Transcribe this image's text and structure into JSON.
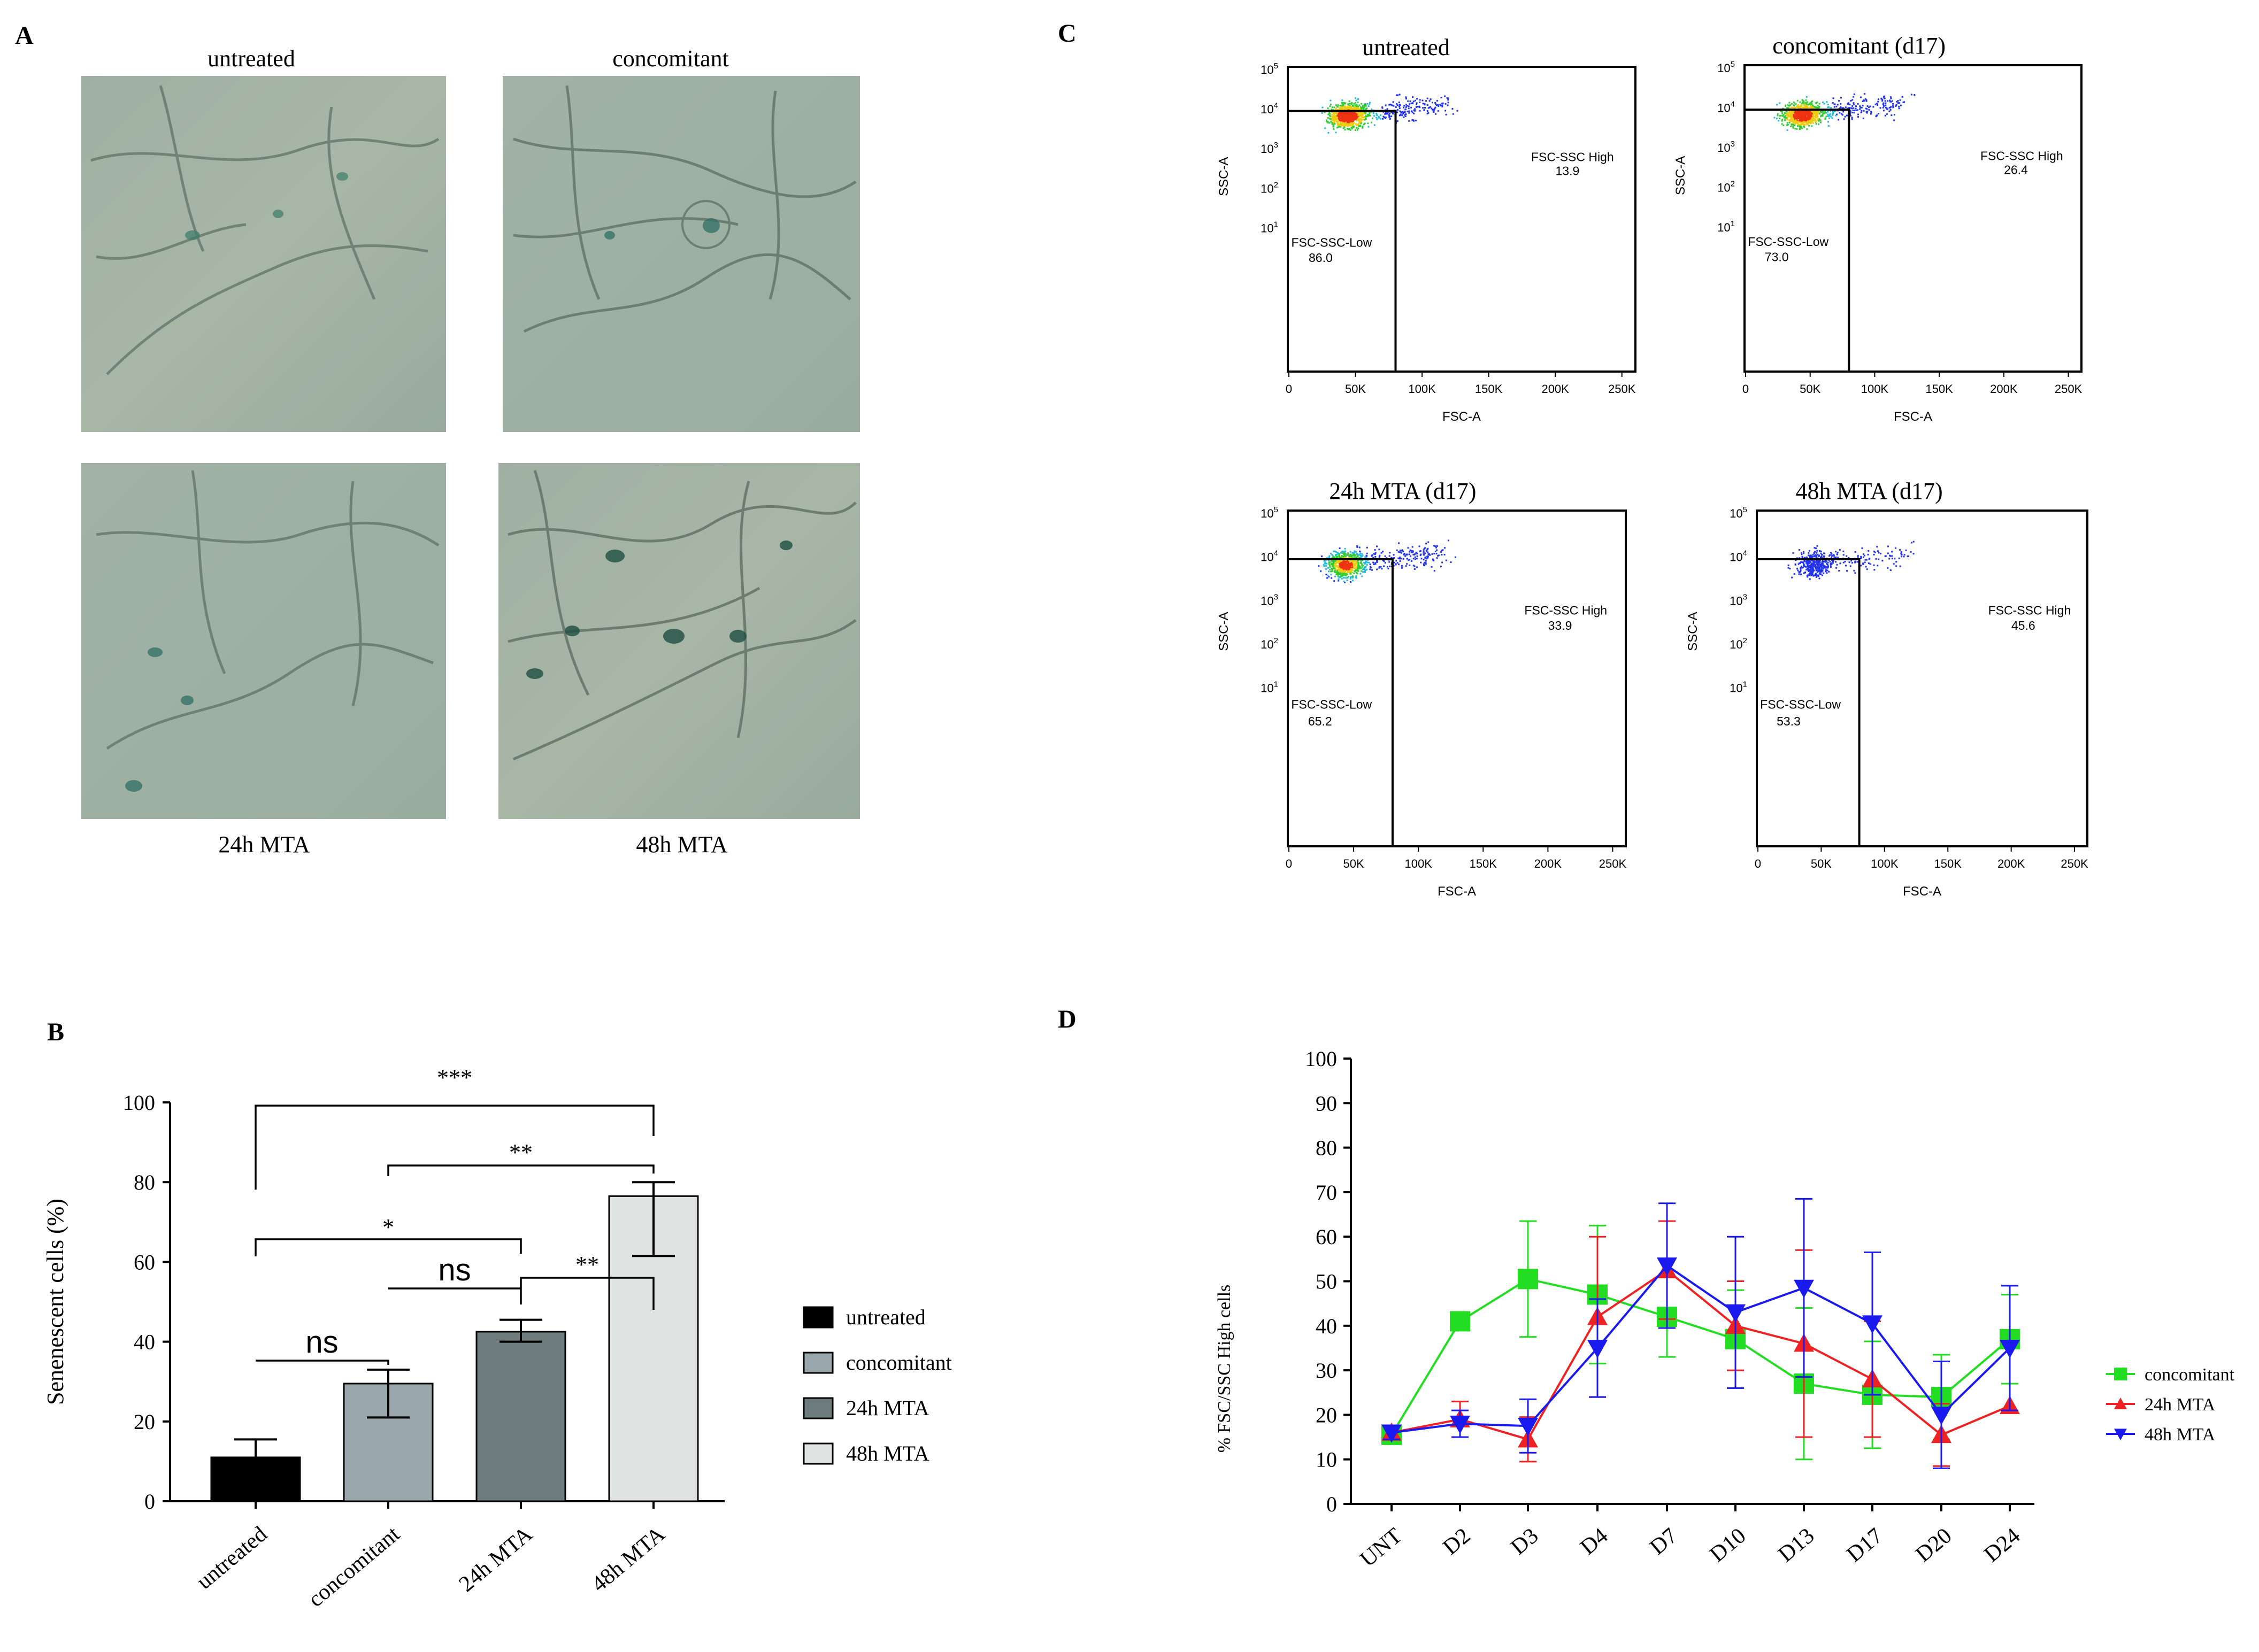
{
  "panel_letters": {
    "a": "A",
    "b": "B",
    "c": "C",
    "d": "D"
  },
  "panel_a": {
    "labels_top": [
      "untreated",
      "concomitant"
    ],
    "labels_bottom": [
      "24h MTA",
      "48h MTA"
    ]
  },
  "colors": {
    "concomitant": "#22dd22",
    "mta24": "#ee2222",
    "mta48": "#1a1aee",
    "bar_untreated": "#000000",
    "bar_concomitant": "#9aa7ac",
    "bar_24h": "#6e7c7e",
    "bar_48h": "#dfe3e1"
  },
  "chart_data": [
    {
      "id": "B",
      "type": "bar",
      "title": "",
      "xlabel": "",
      "ylabel": "Senenescent cells (%)",
      "ylim": [
        0,
        100
      ],
      "yticks": [
        "0",
        "20",
        "40",
        "60",
        "80",
        "100"
      ],
      "categories": [
        "untreated",
        "concomitant",
        "24h MTA",
        "48h MTA"
      ],
      "values": [
        11,
        29.5,
        42.5,
        76.5
      ],
      "error_low": [
        0,
        21,
        40,
        61.5
      ],
      "error_high": [
        15.5,
        33,
        45.5,
        80
      ],
      "legend": [
        "untreated",
        "concomitant",
        "24h MTA",
        "48h MTA"
      ],
      "legend_position": "right",
      "significance": [
        {
          "from": "untreated",
          "to": "concomitant",
          "label": "ns"
        },
        {
          "from": "concomitant",
          "to": "24h MTA",
          "label": "ns"
        },
        {
          "from": "24h MTA",
          "to": "48h MTA",
          "label": "**"
        },
        {
          "from": "untreated",
          "to": "24h MTA",
          "label": "*"
        },
        {
          "from": "concomitant",
          "to": "48h MTA",
          "label": "**"
        },
        {
          "from": "untreated",
          "to": "48h MTA",
          "label": "***"
        }
      ]
    },
    {
      "id": "C",
      "type": "scatter",
      "subtype": "flow-cytometry",
      "xlabel": "FSC-A",
      "ylabel": "SSC-A",
      "xticks": [
        "0",
        "50K",
        "100K",
        "150K",
        "200K",
        "250K"
      ],
      "yticks": [
        "10^1",
        "10^2",
        "10^3",
        "10^4",
        "10^5"
      ],
      "plots": [
        {
          "title": "untreated",
          "gate_low_label": "FSC-SSC-Low",
          "gate_low": "86.0",
          "gate_high_label": "FSC-SSC High",
          "gate_high": "13.9"
        },
        {
          "title": "concomitant (d17)",
          "gate_low_label": "FSC-SSC-Low",
          "gate_low": "73.0",
          "gate_high_label": "FSC-SSC High",
          "gate_high": "26.4"
        },
        {
          "title": "24h MTA (d17)",
          "gate_low_label": "FSC-SSC-Low",
          "gate_low": "65.2",
          "gate_high_label": "FSC-SSC High",
          "gate_high": "33.9"
        },
        {
          "title": "48h MTA (d17)",
          "gate_low_label": "FSC-SSC-Low",
          "gate_low": "53.3",
          "gate_high_label": "FSC-SSC High",
          "gate_high": "45.6"
        }
      ]
    },
    {
      "id": "D",
      "type": "line",
      "title": "",
      "xlabel": "",
      "ylabel": "% FSC/SSC High cells",
      "ylim": [
        0,
        100
      ],
      "yticks": [
        "0",
        "10",
        "20",
        "30",
        "40",
        "50",
        "60",
        "70",
        "80",
        "90",
        "100"
      ],
      "categories": [
        "UNT",
        "D2",
        "D3",
        "D4",
        "D7",
        "D10",
        "D13",
        "D17",
        "D20",
        "D24"
      ],
      "legend_position": "right",
      "series": [
        {
          "name": "concomitant",
          "marker": "square",
          "values": [
            15.5,
            41,
            50.5,
            47,
            42,
            37,
            27,
            24.5,
            24,
            37
          ],
          "err": [
            1.5,
            0,
            13,
            15.5,
            9,
            11,
            17,
            12,
            9.5,
            10
          ]
        },
        {
          "name": "24h MTA",
          "marker": "triangle-up",
          "values": [
            16,
            19,
            14.5,
            42,
            52.5,
            40,
            36,
            28,
            15.5,
            22
          ],
          "err": [
            1.5,
            4,
            5,
            18,
            11,
            10,
            21,
            13,
            7,
            0
          ]
        },
        {
          "name": "48h MTA",
          "marker": "triangle-down",
          "values": [
            16,
            18,
            17.5,
            35,
            53.5,
            43,
            48.5,
            40.5,
            20,
            35
          ],
          "err": [
            1.5,
            3,
            6,
            11,
            14,
            17,
            20,
            16,
            12,
            14
          ]
        }
      ]
    }
  ]
}
